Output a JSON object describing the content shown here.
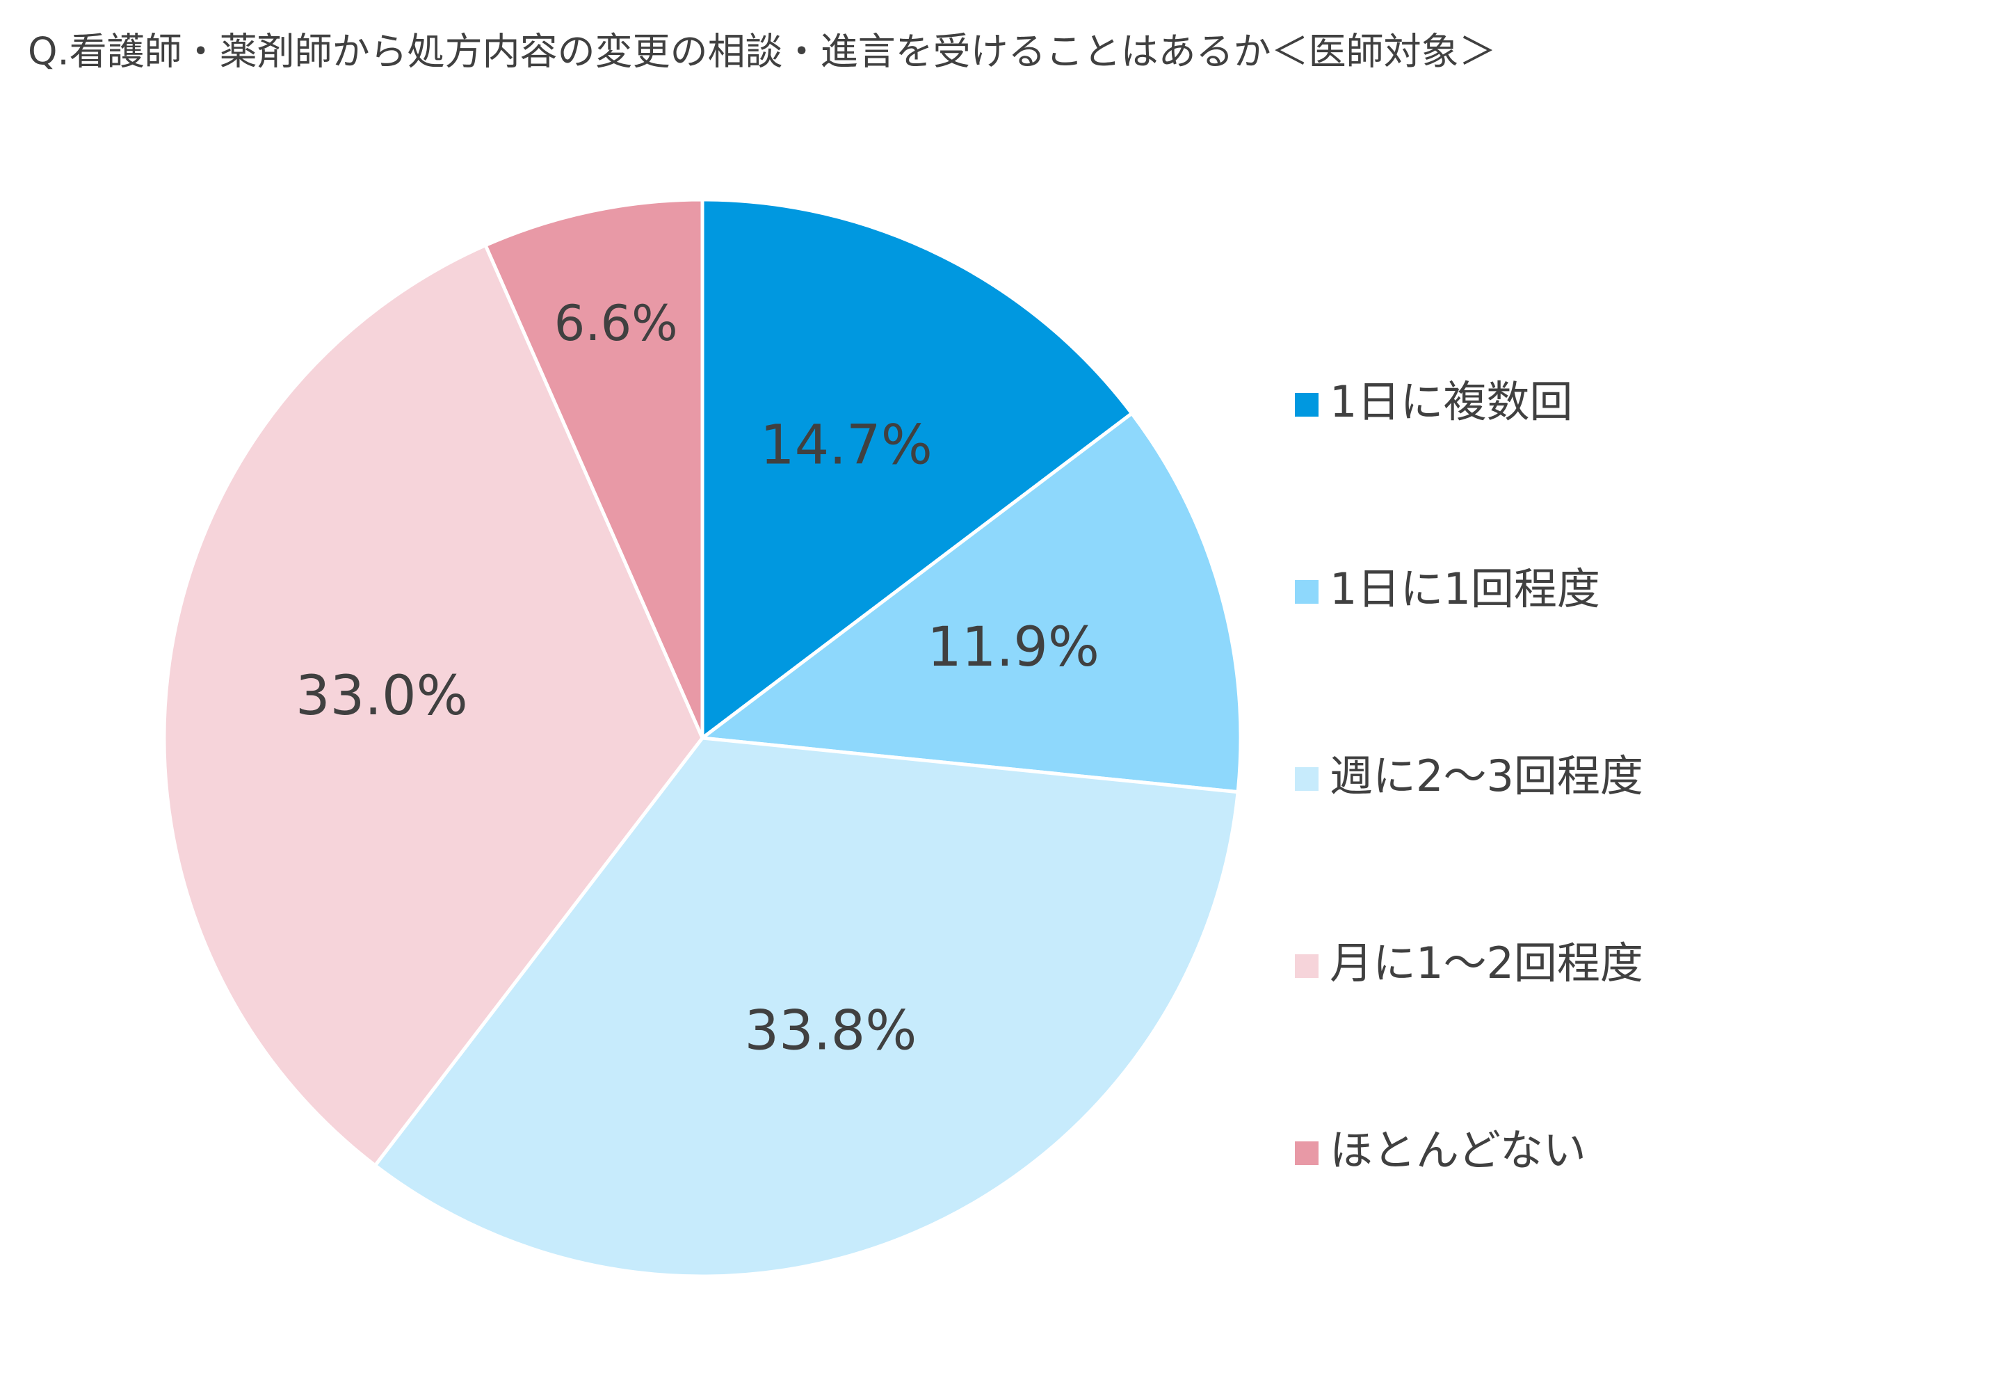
{
  "chart_data": {
    "type": "pie",
    "title": "Q.看護師・薬剤師から処方内容の変更の相談・進言を受けることはあるか＜医師対象＞",
    "categories": [
      "1日に複数回",
      "1日に1回程度",
      "週に2～3回程度",
      "月に1～2回程度",
      "ほとんどない"
    ],
    "values": [
      14.7,
      11.9,
      33.8,
      33.0,
      6.6
    ],
    "value_labels": [
      "14.7%",
      "11.9%",
      "33.8%",
      "33.0%",
      "6.6%"
    ],
    "colors": [
      "#0098e0",
      "#8ed8fc",
      "#c7ebfc",
      "#f6d4da",
      "#e899a6"
    ],
    "legend": "right"
  }
}
